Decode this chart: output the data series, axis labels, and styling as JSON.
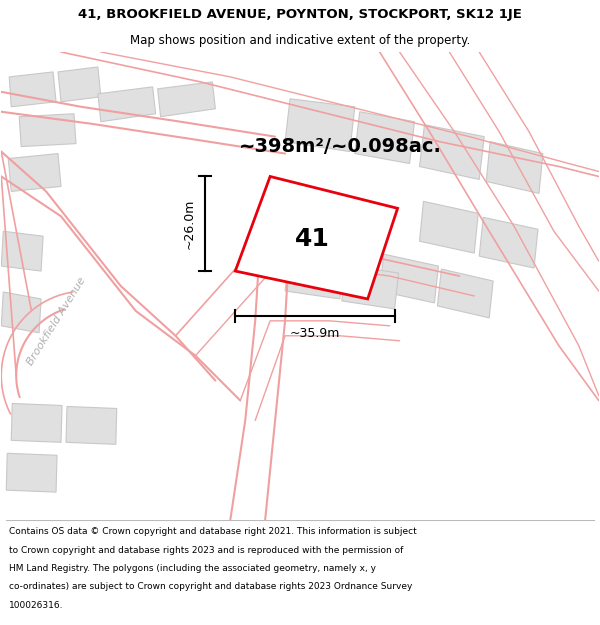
{
  "title_line1": "41, BROOKFIELD AVENUE, POYNTON, STOCKPORT, SK12 1JE",
  "title_line2": "Map shows position and indicative extent of the property.",
  "area_text": "~398m²/~0.098ac.",
  "label_41": "41",
  "dim_vertical": "~26.0m",
  "dim_horizontal": "~35.9m",
  "street_label": "Brookfield Avenue",
  "map_bg": "#f7f6f4",
  "building_fill": "#e0e0e0",
  "building_edge": "#c8c8c8",
  "red_outline": "#e8000d",
  "pink": "#f0a0a0",
  "footer_lines": [
    "Contains OS data © Crown copyright and database right 2021. This information is subject",
    "to Crown copyright and database rights 2023 and is reproduced with the permission of",
    "HM Land Registry. The polygons (including the associated geometry, namely x, y",
    "co-ordinates) are subject to Crown copyright and database rights 2023 Ordnance Survey",
    "100026316."
  ],
  "title_fontsize": 9.5,
  "subtitle_fontsize": 8.5,
  "area_fontsize": 14,
  "label_fontsize": 18,
  "dim_fontsize": 9,
  "street_fontsize": 8,
  "footer_fontsize": 6.5
}
